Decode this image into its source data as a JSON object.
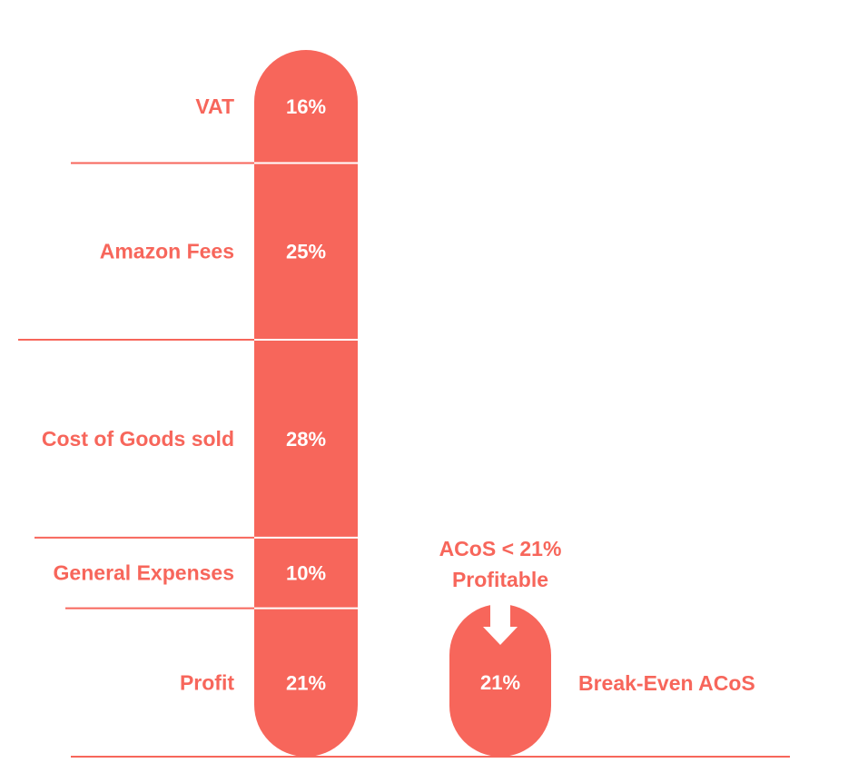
{
  "chart_data": {
    "type": "bar",
    "segments": [
      {
        "label": "VAT",
        "value": 16,
        "value_label": "16%"
      },
      {
        "label": "Amazon Fees",
        "value": 25,
        "value_label": "25%"
      },
      {
        "label": "Cost of Goods sold",
        "value": 28,
        "value_label": "28%"
      },
      {
        "label": "General Expenses",
        "value": 10,
        "value_label": "10%"
      },
      {
        "label": "Profit",
        "value": 21,
        "value_label": "21%"
      }
    ],
    "break_even": {
      "value": 21,
      "value_label": "21%",
      "label": "Break-Even ACoS"
    },
    "annotation": {
      "line1": "ACoS < 21%",
      "line2": "Profitable"
    }
  },
  "colors": {
    "accent": "#f7665b",
    "line": "#f7665b",
    "text_on_bar": "#ffffff"
  }
}
